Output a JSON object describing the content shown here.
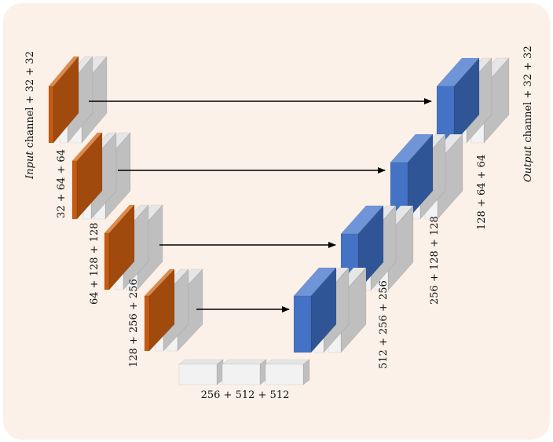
{
  "diagram": {
    "background_color": "#fbf1e8",
    "colors": {
      "orange_front": "#c55a11",
      "orange_top": "#e08a4a",
      "orange_side": "#a14a0d",
      "blue_front": "#4472c4",
      "blue_top": "#6f95d8",
      "blue_side": "#2f5597",
      "gray_front": "#f2f2f2",
      "gray_top": "#e6e6e6",
      "gray_side": "#bfbfbf",
      "arrow": "#000000"
    },
    "labels": {
      "left_top_word": "Input",
      "left_top_rest": " channel + 32 + 32",
      "left_2": "32 + 64 + 64",
      "left_3": "64 + 128 + 128",
      "left_4": "128 + 256 + 256",
      "bottom": "256 + 512 + 512",
      "right_4": "512 + 256 + 256",
      "right_3": "256 + 128 + 128",
      "right_2": "128 + 64 + 64",
      "right_top_word": "Output",
      "right_top_rest": " channel + 32 + 32"
    }
  }
}
